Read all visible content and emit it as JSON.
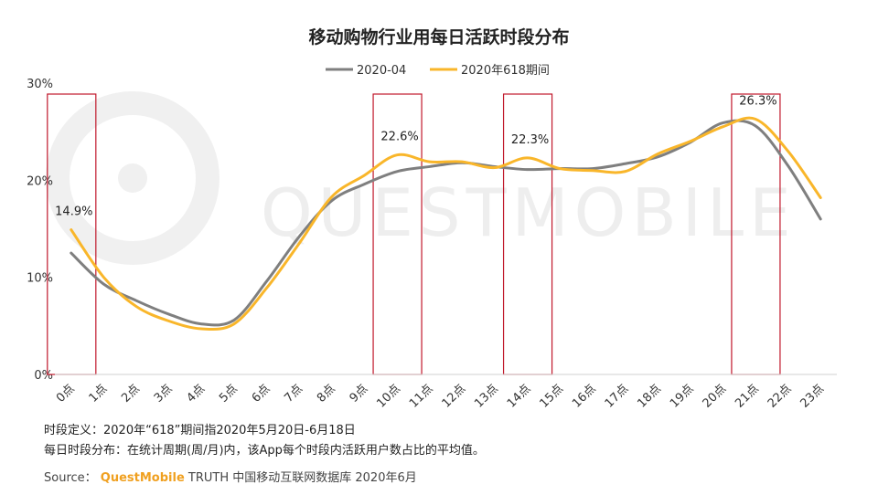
{
  "chart_data": {
    "type": "line",
    "title": "移动购物行业用每日活跃时段分布",
    "categories": [
      "0点",
      "1点",
      "2点",
      "3点",
      "4点",
      "5点",
      "6点",
      "7点",
      "8点",
      "9点",
      "10点",
      "11点",
      "12点",
      "13点",
      "14点",
      "15点",
      "16点",
      "17点",
      "18点",
      "19点",
      "20点",
      "21点",
      "22点",
      "23点"
    ],
    "series": [
      {
        "name": "2020-04",
        "color": "#7f7f7f",
        "values": [
          12.5,
          9.3,
          7.6,
          6.2,
          5.2,
          5.6,
          9.6,
          14.2,
          17.9,
          19.6,
          20.9,
          21.4,
          21.8,
          21.4,
          21.1,
          21.2,
          21.2,
          21.7,
          22.4,
          23.9,
          25.9,
          25.6,
          21.5,
          16.0
        ]
      },
      {
        "name": "2020年618期间",
        "color": "#f9b62a",
        "values": [
          14.9,
          10.0,
          7.0,
          5.5,
          4.7,
          5.2,
          8.9,
          13.5,
          18.3,
          20.5,
          22.6,
          21.9,
          21.9,
          21.3,
          22.3,
          21.2,
          21.0,
          20.9,
          22.7,
          24.0,
          25.5,
          26.3,
          23.0,
          18.2
        ]
      }
    ],
    "y_ticks": [
      "0%",
      "10%",
      "20%",
      "30%"
    ],
    "ylim": [
      0,
      30
    ],
    "data_labels": [
      {
        "category": "0点",
        "text": "14.9%"
      },
      {
        "category": "10点",
        "text": "22.6%"
      },
      {
        "category": "14点",
        "text": "22.3%"
      },
      {
        "category": "21点",
        "text": "26.3%"
      }
    ],
    "highlight_boxes": [
      "0点",
      "10点",
      "14点",
      "21点"
    ],
    "highlight_color": "#c0182b",
    "legend_position": "top-center",
    "grid": false
  },
  "watermark": "QUESTMOBILE",
  "notes": {
    "line1": "时段定义：2020年“618”期间指2020年5月20日-6月18日",
    "line2": "每日时段分布：在统计周期(周/月)内，该App每个时段内活跃用户数占比的平均值。"
  },
  "source": {
    "prefix": "Source：",
    "brand": "QuestMobile",
    "suffix": " TRUTH 中国移动互联网数据库 2020年6月"
  }
}
